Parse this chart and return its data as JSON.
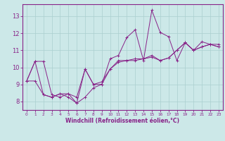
{
  "xlabel": "Windchill (Refroidissement éolien,°C)",
  "bg_color": "#cce8e8",
  "grid_color": "#aacfcf",
  "line_color": "#882288",
  "xlim": [
    -0.5,
    23.5
  ],
  "ylim": [
    7.5,
    13.7
  ],
  "yticks": [
    8,
    9,
    10,
    11,
    12,
    13
  ],
  "xticks": [
    0,
    1,
    2,
    3,
    4,
    5,
    6,
    7,
    8,
    9,
    10,
    11,
    12,
    13,
    14,
    15,
    16,
    17,
    18,
    19,
    20,
    21,
    22,
    23
  ],
  "series": [
    [
      9.2,
      10.35,
      10.35,
      8.4,
      8.25,
      8.45,
      7.9,
      9.9,
      9.0,
      9.0,
      10.5,
      10.7,
      11.75,
      12.2,
      10.4,
      13.35,
      12.05,
      11.8,
      10.4,
      11.45,
      11.0,
      11.5,
      11.35,
      11.35
    ],
    [
      9.2,
      10.35,
      8.4,
      8.25,
      8.45,
      8.45,
      8.25,
      9.9,
      9.0,
      9.15,
      9.9,
      10.4,
      10.4,
      10.4,
      10.5,
      10.7,
      10.4,
      10.55,
      11.0,
      11.45,
      11.0,
      11.2,
      11.35,
      11.2
    ],
    [
      9.2,
      9.2,
      8.4,
      8.25,
      8.45,
      8.25,
      7.9,
      8.25,
      8.8,
      9.0,
      9.9,
      10.3,
      10.4,
      10.5,
      10.5,
      10.6,
      10.4,
      10.55,
      11.0,
      11.45,
      11.0,
      11.2,
      11.35,
      11.2
    ]
  ]
}
